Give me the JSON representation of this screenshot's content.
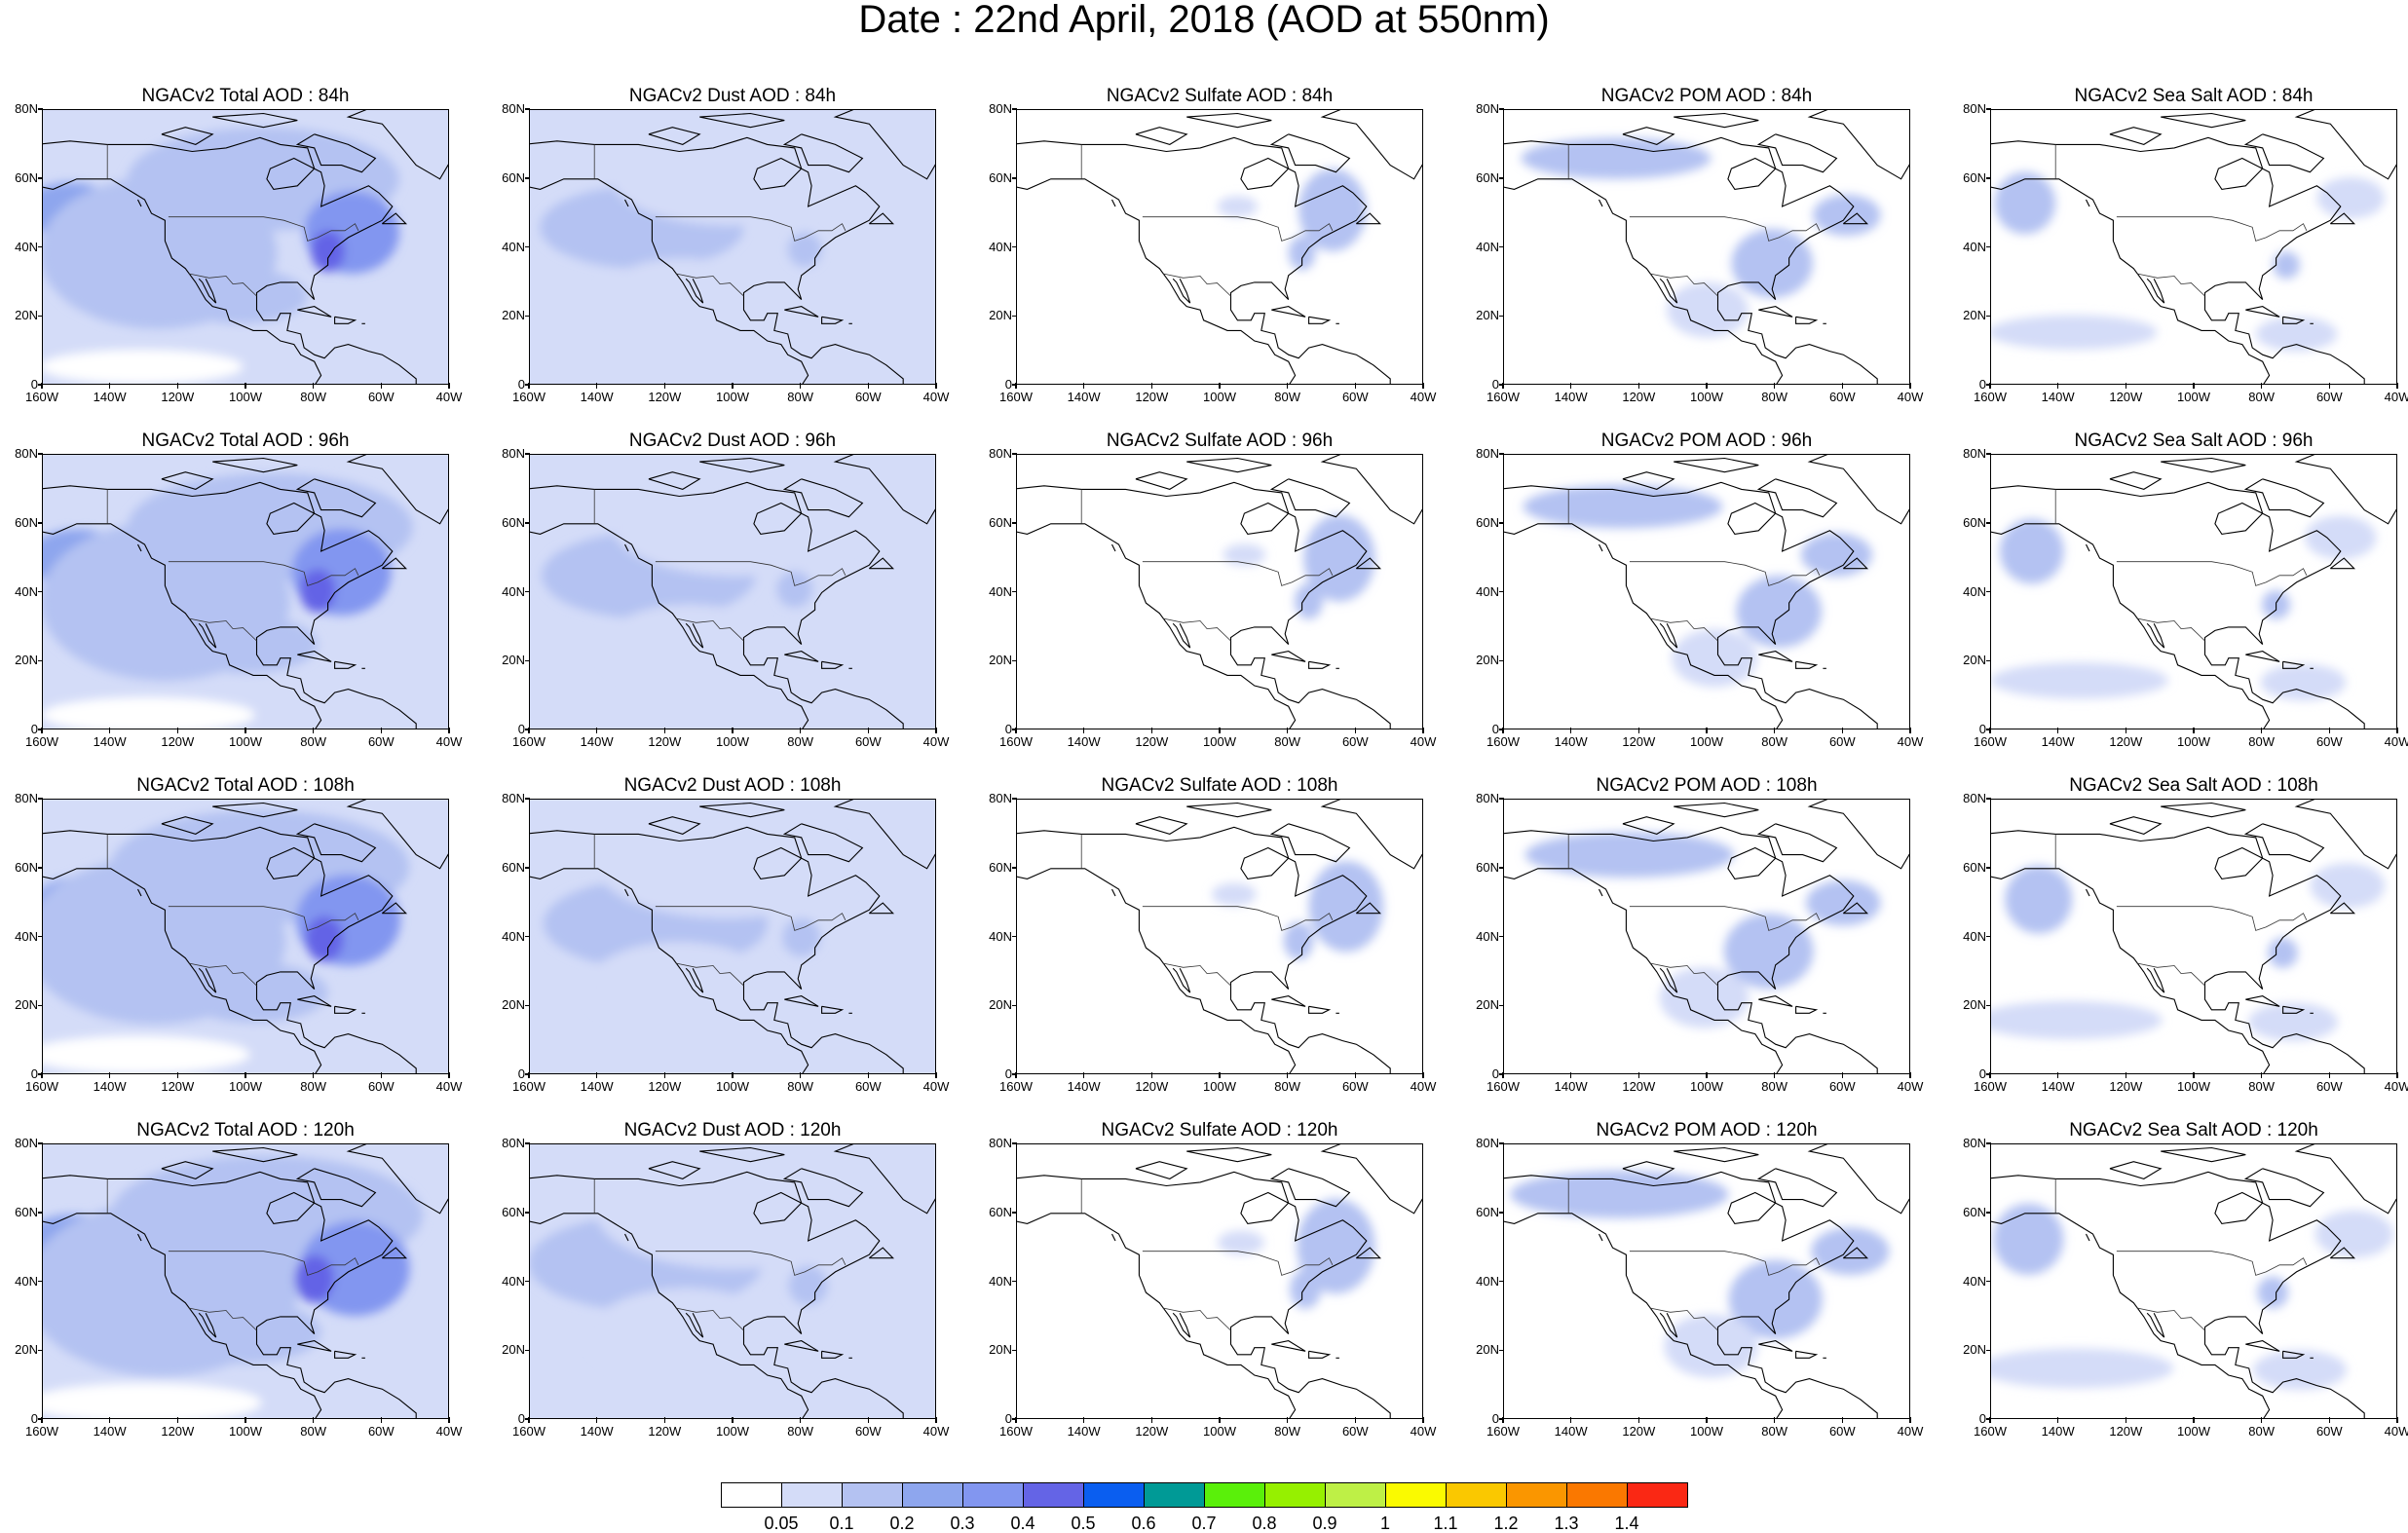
{
  "title": "Date : 22nd April, 2018 (AOD at 550nm)",
  "panel_titles": [
    [
      "NGACv2 Total AOD : 84h",
      "NGACv2 Dust AOD : 84h",
      "NGACv2 Sulfate AOD : 84h",
      "NGACv2 POM AOD : 84h",
      "NGACv2 Sea Salt AOD : 84h"
    ],
    [
      "NGACv2 Total AOD : 96h",
      "NGACv2 Dust AOD : 96h",
      "NGACv2 Sulfate AOD : 96h",
      "NGACv2 POM AOD : 96h",
      "NGACv2 Sea Salt AOD : 96h"
    ],
    [
      "NGACv2 Total AOD : 108h",
      "NGACv2 Dust AOD : 108h",
      "NGACv2 Sulfate AOD : 108h",
      "NGACv2 POM AOD : 108h",
      "NGACv2 Sea Salt AOD : 108h"
    ],
    [
      "NGACv2 Total AOD : 120h",
      "NGACv2 Dust AOD : 120h",
      "NGACv2 Sulfate AOD : 120h",
      "NGACv2 POM AOD : 120h",
      "NGACv2 Sea Salt  AOD : 120h"
    ]
  ],
  "axes": {
    "lon_range": [
      -160,
      -40
    ],
    "lat_range": [
      0,
      80
    ],
    "x_ticks": [
      {
        "value": -160,
        "label": "160W"
      },
      {
        "value": -140,
        "label": "140W"
      },
      {
        "value": -120,
        "label": "120W"
      },
      {
        "value": -100,
        "label": "100W"
      },
      {
        "value": -80,
        "label": "80W"
      },
      {
        "value": -60,
        "label": "60W"
      },
      {
        "value": -40,
        "label": "40W"
      }
    ],
    "y_ticks": [
      {
        "value": 0,
        "label": "0"
      },
      {
        "value": 20,
        "label": "20N"
      },
      {
        "value": 40,
        "label": "40N"
      },
      {
        "value": 60,
        "label": "60N"
      },
      {
        "value": 80,
        "label": "80N"
      }
    ]
  },
  "colorbar": {
    "colors": [
      "#ffffff",
      "#d4dcf8",
      "#b4c2f2",
      "#8ea6ee",
      "#8296f0",
      "#6464e6",
      "#0a5ef0",
      "#009a96",
      "#5af00a",
      "#96f000",
      "#bef046",
      "#fafa00",
      "#fac800",
      "#fa9600",
      "#fa7800",
      "#fa2814"
    ],
    "labels": [
      "0.05",
      "0.1",
      "0.2",
      "0.3",
      "0.4",
      "0.5",
      "0.6",
      "0.7",
      "0.8",
      "0.9",
      "1",
      "1.1",
      "1.2",
      "1.3",
      "1.4"
    ]
  },
  "fields": {
    "total": [
      {
        "lon": -150,
        "lat": 50,
        "rx": 14,
        "ry": 8,
        "level": 3
      },
      {
        "lon": -125,
        "lat": 38,
        "rx": 35,
        "ry": 22,
        "level": 2
      },
      {
        "lon": -95,
        "lat": 60,
        "rx": 40,
        "ry": 15,
        "level": 2
      },
      {
        "lon": -70,
        "lat": 45,
        "rx": 14,
        "ry": 12,
        "level": 4
      },
      {
        "lon": -78,
        "lat": 40,
        "rx": 5,
        "ry": 6,
        "level": 5
      },
      {
        "lon": -100,
        "lat": 25,
        "rx": 20,
        "ry": 8,
        "level": 2
      },
      {
        "lon": -130,
        "lat": 5,
        "rx": 30,
        "ry": 5,
        "level": 0
      }
    ],
    "dust": [
      {
        "lon": -125,
        "lat": 45,
        "rx": 30,
        "ry": 12,
        "level": 2
      },
      {
        "lon": -100,
        "lat": 60,
        "rx": 35,
        "ry": 14,
        "level": 1
      },
      {
        "lon": -115,
        "lat": 25,
        "rx": 25,
        "ry": 12,
        "level": 1
      },
      {
        "lon": -80,
        "lat": 40,
        "rx": 5,
        "ry": 5,
        "level": 2
      }
    ],
    "sulfate": [
      {
        "lon": -65,
        "lat": 50,
        "rx": 10,
        "ry": 12,
        "level": 2
      },
      {
        "lon": -75,
        "lat": 38,
        "rx": 4,
        "ry": 5,
        "level": 2
      },
      {
        "lon": -95,
        "lat": 52,
        "rx": 6,
        "ry": 3,
        "level": 1
      }
    ],
    "pom": [
      {
        "lon": -125,
        "lat": 65,
        "rx": 28,
        "ry": 6,
        "level": 2
      },
      {
        "lon": -80,
        "lat": 35,
        "rx": 12,
        "ry": 10,
        "level": 2
      },
      {
        "lon": -100,
        "lat": 22,
        "rx": 12,
        "ry": 8,
        "level": 1
      },
      {
        "lon": -60,
        "lat": 50,
        "rx": 10,
        "ry": 6,
        "level": 2
      }
    ],
    "seasalt": [
      {
        "lon": -148,
        "lat": 52,
        "rx": 9,
        "ry": 9,
        "level": 2
      },
      {
        "lon": -135,
        "lat": 15,
        "rx": 25,
        "ry": 5,
        "level": 1
      },
      {
        "lon": -70,
        "lat": 15,
        "rx": 12,
        "ry": 5,
        "level": 1
      },
      {
        "lon": -55,
        "lat": 55,
        "rx": 10,
        "ry": 6,
        "level": 1
      },
      {
        "lon": -75,
        "lat": 36,
        "rx": 4,
        "ry": 4,
        "level": 2
      }
    ]
  }
}
